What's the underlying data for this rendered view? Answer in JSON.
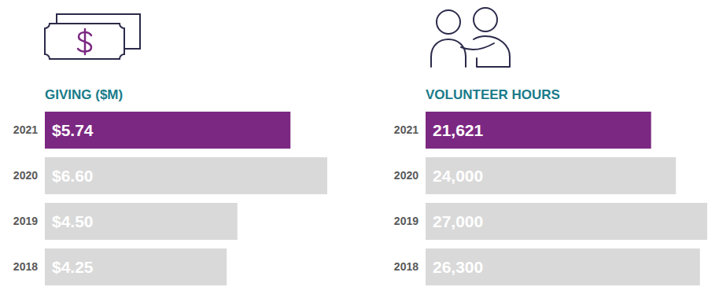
{
  "chart_data": [
    {
      "type": "bar",
      "orientation": "horizontal",
      "title": "GIVING ($M)",
      "categories": [
        "2021",
        "2020",
        "2019",
        "2018"
      ],
      "values": [
        5.74,
        6.6,
        4.5,
        4.25
      ],
      "value_labels": [
        "$5.74",
        "$6.60",
        "$4.50",
        "$4.25"
      ],
      "colors": [
        "#7b2882",
        "#d9d9d9",
        "#d9d9d9",
        "#d9d9d9"
      ],
      "xlim": [
        0,
        6.6
      ],
      "data_labels": true,
      "tick_labels": "y"
    },
    {
      "type": "bar",
      "orientation": "horizontal",
      "title": "VOLUNTEER HOURS",
      "categories": [
        "2021",
        "2020",
        "2019",
        "2018"
      ],
      "values": [
        21621,
        24000,
        27000,
        26300
      ],
      "value_labels": [
        "21,621",
        "24,000",
        "27,000",
        "26,300"
      ],
      "colors": [
        "#7b2882",
        "#d9d9d9",
        "#d9d9d9",
        "#d9d9d9"
      ],
      "xlim": [
        0,
        27000
      ],
      "data_labels": true,
      "tick_labels": "y"
    }
  ]
}
